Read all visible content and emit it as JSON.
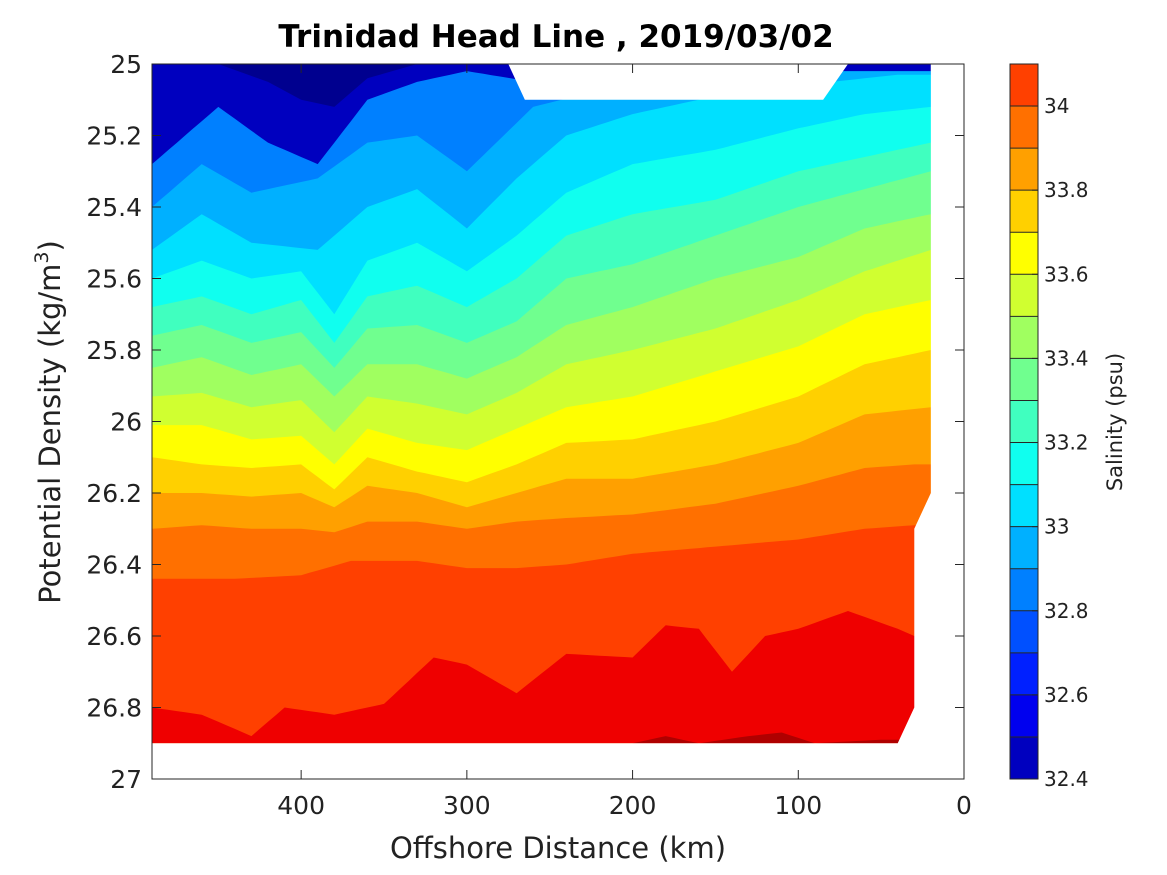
{
  "chart_data": {
    "type": "heatmap",
    "subtype": "filled-contour",
    "title": "Trinidad Head Line , 2019/03/02",
    "xlabel": "Offshore Distance (km)",
    "ylabel_main": "Potential Density (kg/m",
    "ylabel_sup": "3",
    "ylabel_close": ")",
    "colorbar_label": "Salinity (psu)",
    "xlim": [
      490,
      0
    ],
    "x_reversed": true,
    "ylim": [
      27,
      25
    ],
    "y_reversed": true,
    "x_ticks": [
      400,
      300,
      200,
      100,
      0
    ],
    "x_tick_labels": [
      "400",
      "300",
      "200",
      "100",
      "0"
    ],
    "y_ticks": [
      25,
      25.2,
      25.4,
      25.6,
      25.8,
      26,
      26.2,
      26.4,
      26.6,
      26.8,
      27
    ],
    "y_tick_labels": [
      "25",
      "25.2",
      "25.4",
      "25.6",
      "25.8",
      "26",
      "26.2",
      "26.4",
      "26.6",
      "26.8",
      "27"
    ],
    "clim": [
      32.4,
      34.1
    ],
    "colorbar_ticks": [
      32.4,
      32.6,
      32.8,
      33,
      33.2,
      33.4,
      33.6,
      33.8,
      34
    ],
    "colorbar_tick_labels": [
      "32.4",
      "32.6",
      "32.8",
      "33",
      "33.2",
      "33.4",
      "33.6",
      "33.8",
      "34"
    ],
    "contour_levels": [
      32.4,
      32.5,
      32.6,
      32.7,
      32.8,
      32.9,
      33.0,
      33.1,
      33.2,
      33.3,
      33.4,
      33.5,
      33.6,
      33.7,
      33.8,
      33.9,
      34.0,
      34.1
    ],
    "level_colors": [
      "#00008f",
      "#0000bf",
      "#0000ef",
      "#0020ff",
      "#0050ff",
      "#0080ff",
      "#00b0ff",
      "#00e0ff",
      "#10ffef",
      "#40ffbf",
      "#70ff8f",
      "#a0ff60",
      "#d0ff30",
      "#ffff00",
      "#ffd000",
      "#ffa000",
      "#ff7000",
      "#ff4000",
      "#ef0000",
      "#af0000"
    ],
    "grid": false,
    "colormap": "jet",
    "data_extent": {
      "x_range_km": [
        490,
        20
      ],
      "density_range": [
        25,
        26.9
      ],
      "missing_top_band": {
        "x_km": [
          270,
          80
        ],
        "density": [
          25,
          25.1
        ]
      },
      "missing_right_edge": "below 26.2 near shore"
    },
    "salinity_contours": [
      {
        "level": 32.7,
        "depth_profile": [
          [
            490,
            25.28
          ],
          [
            450,
            25.12
          ],
          [
            420,
            25.22
          ],
          [
            390,
            25.28
          ],
          [
            360,
            25.1
          ],
          [
            330,
            25.05
          ],
          [
            300,
            25.02
          ],
          [
            260,
            25.05
          ],
          [
            240,
            25.03
          ]
        ]
      },
      {
        "level": 32.8,
        "depth_profile": [
          [
            490,
            25.4
          ],
          [
            460,
            25.28
          ],
          [
            430,
            25.36
          ],
          [
            390,
            25.32
          ],
          [
            360,
            25.22
          ],
          [
            330,
            25.2
          ],
          [
            300,
            25.3
          ],
          [
            260,
            25.12
          ],
          [
            200,
            25.05
          ],
          [
            150,
            25.02
          ]
        ]
      },
      {
        "level": 32.9,
        "depth_profile": [
          [
            490,
            25.52
          ],
          [
            460,
            25.42
          ],
          [
            430,
            25.5
          ],
          [
            390,
            25.52
          ],
          [
            360,
            25.4
          ],
          [
            330,
            25.35
          ],
          [
            300,
            25.46
          ],
          [
            270,
            25.32
          ],
          [
            240,
            25.2
          ],
          [
            200,
            25.14
          ],
          [
            150,
            25.09
          ],
          [
            100,
            25.06
          ],
          [
            40,
            25.03
          ]
        ]
      },
      {
        "level": 33.0,
        "depth_profile": [
          [
            490,
            25.6
          ],
          [
            460,
            25.55
          ],
          [
            430,
            25.6
          ],
          [
            400,
            25.58
          ],
          [
            380,
            25.7
          ],
          [
            360,
            25.55
          ],
          [
            330,
            25.5
          ],
          [
            300,
            25.58
          ],
          [
            270,
            25.48
          ],
          [
            240,
            25.36
          ],
          [
            200,
            25.28
          ],
          [
            150,
            25.24
          ],
          [
            100,
            25.18
          ],
          [
            60,
            25.14
          ],
          [
            20,
            25.12
          ]
        ]
      },
      {
        "level": 33.1,
        "depth_profile": [
          [
            490,
            25.68
          ],
          [
            460,
            25.65
          ],
          [
            430,
            25.7
          ],
          [
            400,
            25.66
          ],
          [
            380,
            25.78
          ],
          [
            360,
            25.65
          ],
          [
            330,
            25.62
          ],
          [
            300,
            25.68
          ],
          [
            270,
            25.6
          ],
          [
            240,
            25.48
          ],
          [
            200,
            25.42
          ],
          [
            150,
            25.38
          ],
          [
            100,
            25.3
          ],
          [
            60,
            25.26
          ],
          [
            20,
            25.22
          ]
        ]
      },
      {
        "level": 33.2,
        "depth_profile": [
          [
            490,
            25.76
          ],
          [
            460,
            25.73
          ],
          [
            430,
            25.78
          ],
          [
            400,
            25.75
          ],
          [
            380,
            25.85
          ],
          [
            360,
            25.74
          ],
          [
            330,
            25.73
          ],
          [
            300,
            25.78
          ],
          [
            270,
            25.72
          ],
          [
            240,
            25.6
          ],
          [
            200,
            25.56
          ],
          [
            150,
            25.48
          ],
          [
            100,
            25.4
          ],
          [
            60,
            25.35
          ],
          [
            20,
            25.3
          ]
        ]
      },
      {
        "level": 33.3,
        "depth_profile": [
          [
            490,
            25.85
          ],
          [
            460,
            25.82
          ],
          [
            430,
            25.87
          ],
          [
            400,
            25.84
          ],
          [
            380,
            25.93
          ],
          [
            360,
            25.84
          ],
          [
            330,
            25.84
          ],
          [
            300,
            25.88
          ],
          [
            270,
            25.82
          ],
          [
            240,
            25.73
          ],
          [
            200,
            25.68
          ],
          [
            150,
            25.6
          ],
          [
            100,
            25.54
          ],
          [
            60,
            25.46
          ],
          [
            20,
            25.42
          ]
        ]
      },
      {
        "level": 33.4,
        "depth_profile": [
          [
            490,
            25.93
          ],
          [
            460,
            25.92
          ],
          [
            430,
            25.96
          ],
          [
            400,
            25.94
          ],
          [
            380,
            26.03
          ],
          [
            360,
            25.93
          ],
          [
            330,
            25.95
          ],
          [
            300,
            25.98
          ],
          [
            270,
            25.92
          ],
          [
            240,
            25.84
          ],
          [
            200,
            25.8
          ],
          [
            150,
            25.74
          ],
          [
            100,
            25.66
          ],
          [
            60,
            25.58
          ],
          [
            20,
            25.52
          ]
        ]
      },
      {
        "level": 33.5,
        "depth_profile": [
          [
            490,
            26.01
          ],
          [
            460,
            26.01
          ],
          [
            430,
            26.05
          ],
          [
            400,
            26.04
          ],
          [
            380,
            26.12
          ],
          [
            360,
            26.02
          ],
          [
            330,
            26.06
          ],
          [
            300,
            26.08
          ],
          [
            270,
            26.02
          ],
          [
            240,
            25.96
          ],
          [
            200,
            25.93
          ],
          [
            150,
            25.86
          ],
          [
            100,
            25.79
          ],
          [
            60,
            25.7
          ],
          [
            20,
            25.66
          ]
        ]
      },
      {
        "level": 33.6,
        "depth_profile": [
          [
            490,
            26.1
          ],
          [
            460,
            26.12
          ],
          [
            430,
            26.13
          ],
          [
            400,
            26.12
          ],
          [
            380,
            26.19
          ],
          [
            360,
            26.1
          ],
          [
            330,
            26.14
          ],
          [
            300,
            26.17
          ],
          [
            270,
            26.12
          ],
          [
            240,
            26.06
          ],
          [
            200,
            26.05
          ],
          [
            150,
            26.0
          ],
          [
            100,
            25.93
          ],
          [
            60,
            25.84
          ],
          [
            20,
            25.8
          ]
        ]
      },
      {
        "level": 33.7,
        "depth_profile": [
          [
            490,
            26.2
          ],
          [
            460,
            26.2
          ],
          [
            430,
            26.21
          ],
          [
            400,
            26.2
          ],
          [
            380,
            26.24
          ],
          [
            360,
            26.18
          ],
          [
            330,
            26.2
          ],
          [
            300,
            26.24
          ],
          [
            270,
            26.2
          ],
          [
            240,
            26.16
          ],
          [
            200,
            26.16
          ],
          [
            150,
            26.12
          ],
          [
            100,
            26.06
          ],
          [
            60,
            25.98
          ],
          [
            20,
            25.96
          ]
        ]
      },
      {
        "level": 33.8,
        "depth_profile": [
          [
            490,
            26.3
          ],
          [
            460,
            26.29
          ],
          [
            430,
            26.3
          ],
          [
            400,
            26.3
          ],
          [
            380,
            26.31
          ],
          [
            360,
            26.28
          ],
          [
            330,
            26.28
          ],
          [
            300,
            26.3
          ],
          [
            270,
            26.28
          ],
          [
            240,
            26.27
          ],
          [
            200,
            26.26
          ],
          [
            150,
            26.23
          ],
          [
            100,
            26.18
          ],
          [
            60,
            26.13
          ],
          [
            30,
            26.12
          ]
        ]
      },
      {
        "level": 33.9,
        "depth_profile": [
          [
            490,
            26.44
          ],
          [
            440,
            26.44
          ],
          [
            400,
            26.43
          ],
          [
            370,
            26.39
          ],
          [
            330,
            26.39
          ],
          [
            300,
            26.41
          ],
          [
            270,
            26.41
          ],
          [
            240,
            26.4
          ],
          [
            200,
            26.37
          ],
          [
            150,
            26.35
          ],
          [
            100,
            26.33
          ],
          [
            60,
            26.3
          ],
          [
            30,
            26.29
          ]
        ]
      },
      {
        "level": 34.0,
        "depth_profile": [
          [
            490,
            26.8
          ],
          [
            460,
            26.82
          ],
          [
            430,
            26.88
          ],
          [
            410,
            26.8
          ],
          [
            380,
            26.82
          ],
          [
            350,
            26.79
          ],
          [
            320,
            26.66
          ],
          [
            300,
            26.68
          ],
          [
            270,
            26.76
          ],
          [
            240,
            26.65
          ],
          [
            200,
            26.66
          ],
          [
            180,
            26.57
          ],
          [
            160,
            26.58
          ],
          [
            140,
            26.7
          ],
          [
            120,
            26.6
          ],
          [
            100,
            26.58
          ],
          [
            70,
            26.53
          ],
          [
            40,
            26.58
          ],
          [
            30,
            26.6
          ]
        ]
      },
      {
        "level": 34.1,
        "depth_profile": [
          [
            200,
            26.9
          ],
          [
            180,
            26.88
          ],
          [
            160,
            26.9
          ],
          [
            130,
            26.88
          ],
          [
            110,
            26.87
          ],
          [
            90,
            26.9
          ],
          [
            50,
            26.89
          ]
        ]
      }
    ]
  }
}
